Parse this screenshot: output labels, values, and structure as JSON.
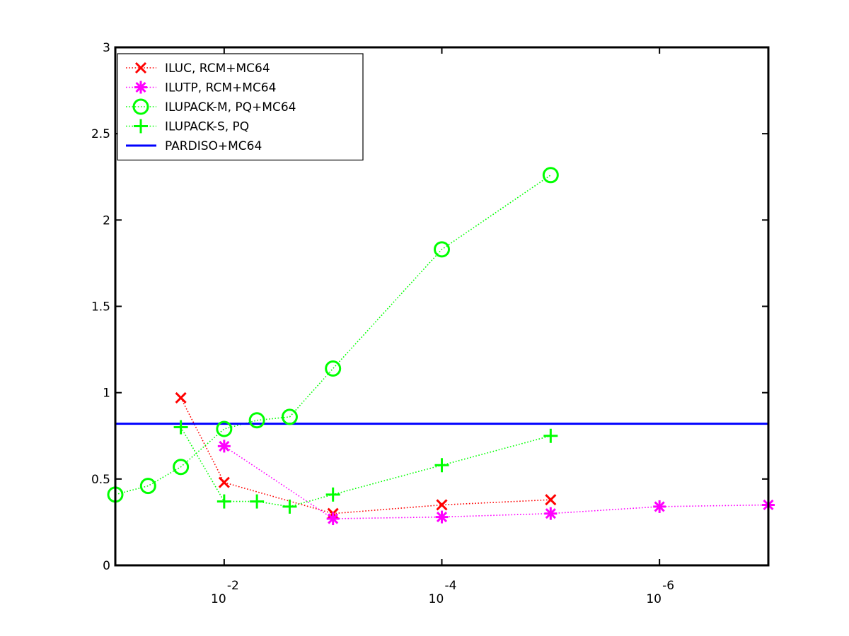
{
  "chart_data": {
    "type": "line",
    "title": "",
    "xlabel": "",
    "ylabel": "",
    "x_scale": "log",
    "x_direction": "decreasing",
    "xlim": [
      0.1,
      1e-07
    ],
    "ylim": [
      0,
      3
    ],
    "grid": false,
    "legend_position": "top-left",
    "y_ticks": [
      "0",
      "0.5",
      "1",
      "1.5",
      "2",
      "2.5",
      "3"
    ],
    "x_ticks": [
      {
        "x": 0.01,
        "base": "10",
        "exp": "-2"
      },
      {
        "x": 0.0001,
        "base": "10",
        "exp": "-4"
      },
      {
        "x": 1e-06,
        "base": "10",
        "exp": "-6"
      }
    ],
    "series": [
      {
        "name": "ILUC, RCM+MC64",
        "color": "#ff0000",
        "marker": "x",
        "line": "dotted",
        "x": [
          0.025,
          0.01,
          0.001,
          0.0001,
          1e-05
        ],
        "y": [
          0.97,
          0.48,
          0.3,
          0.35,
          0.38
        ]
      },
      {
        "name": "ILUTP, RCM+MC64",
        "color": "#ff00ff",
        "marker": "asterisk",
        "line": "dotted",
        "x": [
          0.01,
          0.001,
          0.0001,
          1e-05,
          1e-06,
          1e-07
        ],
        "y": [
          0.69,
          0.27,
          0.28,
          0.3,
          0.34,
          0.35
        ]
      },
      {
        "name": "ILUPACK-M, PQ+MC64",
        "color": "#00ff00",
        "marker": "circle",
        "line": "dotted",
        "x": [
          0.1,
          0.05,
          0.025,
          0.01,
          0.005,
          0.0025,
          0.001,
          0.0001,
          1e-05
        ],
        "y": [
          0.41,
          0.46,
          0.57,
          0.79,
          0.84,
          0.86,
          1.14,
          1.83,
          2.26
        ]
      },
      {
        "name": "ILUPACK-S, PQ",
        "color": "#00ff00",
        "marker": "plus",
        "line": "dotted",
        "x": [
          0.025,
          0.01,
          0.005,
          0.0025,
          0.001,
          0.0001,
          1e-05
        ],
        "y": [
          0.8,
          0.37,
          0.37,
          0.34,
          0.41,
          0.58,
          0.75
        ]
      },
      {
        "name": "PARDISO+MC64",
        "color": "#0000ff",
        "marker": "none",
        "line": "solid",
        "x": [
          0.1,
          1e-07
        ],
        "y": [
          0.82,
          0.82
        ]
      }
    ]
  }
}
